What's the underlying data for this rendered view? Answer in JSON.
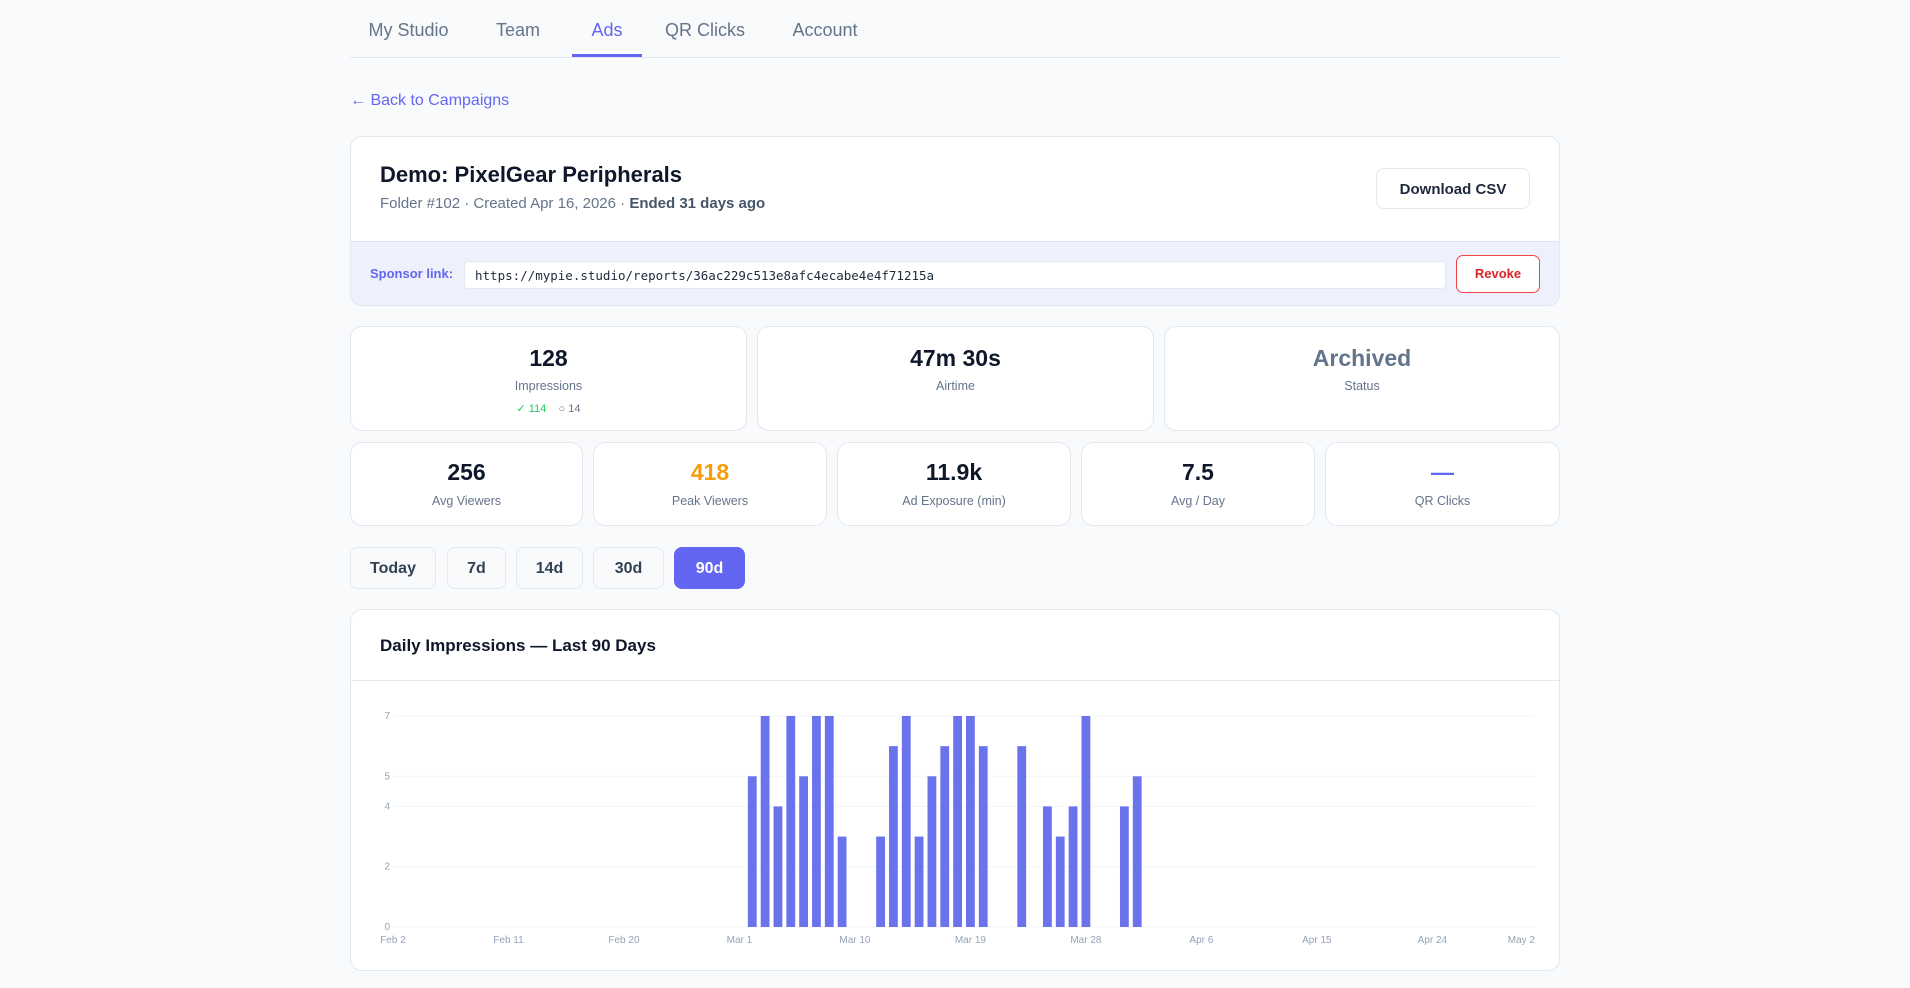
{
  "nav": {
    "tabs": [
      {
        "label": "My Studio",
        "active": false
      },
      {
        "label": "Team",
        "active": false
      },
      {
        "label": "Ads",
        "active": true
      },
      {
        "label": "QR Clicks",
        "active": false
      },
      {
        "label": "Account",
        "active": false
      }
    ]
  },
  "back_link": "← Back to Campaigns",
  "campaign": {
    "title": "Demo: PixelGear Peripherals",
    "meta_prefix": "Folder #102 · Created Apr 16, 2026 · ",
    "meta_ended": "Ended 31 days ago",
    "download_label": "Download CSV"
  },
  "sponsor": {
    "label": "Sponsor link:",
    "url": "https://mypie.studio/reports/36ac229c513e8afc4ecabe4e4f71215a",
    "revoke_label": "Revoke"
  },
  "stats_primary": [
    {
      "value": "128",
      "label": "Impressions",
      "color": "#0f172a"
    },
    {
      "value": "47m 30s",
      "label": "Airtime",
      "color": "#0f172a"
    },
    {
      "value": "Archived",
      "label": "Status",
      "color": "#64748b"
    }
  ],
  "impressions_breakdown": {
    "success_icon": "check-icon",
    "success": "114",
    "pending_icon": "circle-icon",
    "pending": "14"
  },
  "stats_secondary": [
    {
      "value": "256",
      "label": "Avg Viewers",
      "color": "#0f172a"
    },
    {
      "value": "418",
      "label": "Peak Viewers",
      "color": "#f59e0b"
    },
    {
      "value": "11.9k",
      "label": "Ad Exposure (min)",
      "color": "#0f172a"
    },
    {
      "value": "7.5",
      "label": "Avg / Day",
      "color": "#0f172a"
    },
    {
      "value": "—",
      "label": "QR Clicks",
      "color": "#6366f1"
    }
  ],
  "range_buttons": [
    {
      "label": "Today",
      "active": false
    },
    {
      "label": "7d",
      "active": false
    },
    {
      "label": "14d",
      "active": false
    },
    {
      "label": "30d",
      "active": false
    },
    {
      "label": "90d",
      "active": true
    }
  ],
  "chart_title": "Daily Impressions — Last 90 Days",
  "colors": {
    "accent": "#6366f1",
    "bar": "#6a73ec",
    "danger": "#ef4444",
    "warning": "#f59e0b"
  },
  "chart_data": {
    "type": "bar",
    "title": "Daily Impressions — Last 90 Days",
    "xlabel": "",
    "ylabel": "",
    "ylim": [
      0,
      7
    ],
    "yticks": [
      0,
      2,
      4,
      5,
      7
    ],
    "x_ticks": [
      "Feb 2",
      "Feb 11",
      "Feb 20",
      "Mar 1",
      "Mar 10",
      "Mar 19",
      "Mar 28",
      "Apr 6",
      "Apr 15",
      "Apr 24",
      "May 2"
    ],
    "grid": true,
    "bars": [
      {
        "date": "Mar 2",
        "value": 5
      },
      {
        "date": "Mar 3",
        "value": 7
      },
      {
        "date": "Mar 4",
        "value": 4
      },
      {
        "date": "Mar 5",
        "value": 7
      },
      {
        "date": "Mar 6",
        "value": 5
      },
      {
        "date": "Mar 7",
        "value": 7
      },
      {
        "date": "Mar 8",
        "value": 7
      },
      {
        "date": "Mar 9",
        "value": 3
      },
      {
        "date": "Mar 12",
        "value": 3
      },
      {
        "date": "Mar 13",
        "value": 6
      },
      {
        "date": "Mar 14",
        "value": 7
      },
      {
        "date": "Mar 15",
        "value": 3
      },
      {
        "date": "Mar 16",
        "value": 5
      },
      {
        "date": "Mar 17",
        "value": 6
      },
      {
        "date": "Mar 18",
        "value": 7
      },
      {
        "date": "Mar 19",
        "value": 7
      },
      {
        "date": "Mar 20",
        "value": 6
      },
      {
        "date": "Mar 23",
        "value": 6
      },
      {
        "date": "Mar 25",
        "value": 4
      },
      {
        "date": "Mar 26",
        "value": 3
      },
      {
        "date": "Mar 27",
        "value": 4
      },
      {
        "date": "Mar 28",
        "value": 7
      },
      {
        "date": "Mar 31",
        "value": 4
      },
      {
        "date": "Apr 1",
        "value": 5
      }
    ]
  }
}
